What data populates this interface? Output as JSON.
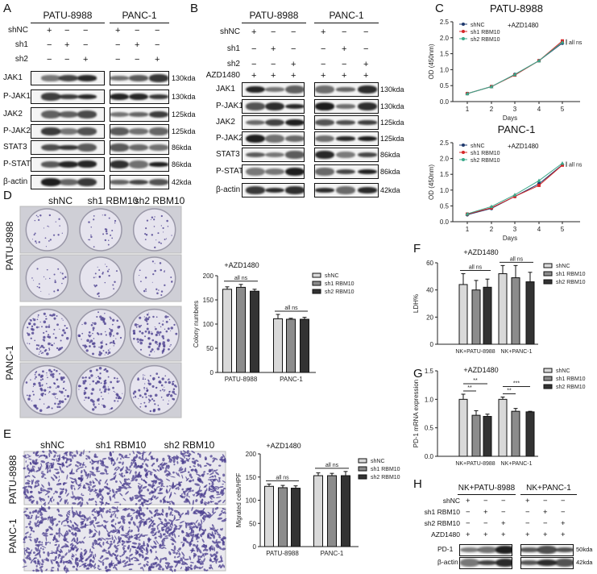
{
  "panel_labels": {
    "A": "A",
    "B": "B",
    "C": "C",
    "D": "D",
    "E": "E",
    "F": "F",
    "G": "G",
    "H": "H"
  },
  "blots": {
    "A": {
      "groups": [
        "PATU-8988",
        "PANC-1"
      ],
      "conditions": [
        {
          "label": "shNC",
          "values": [
            "+",
            "−",
            "−",
            "+",
            "−",
            "−"
          ]
        },
        {
          "label": "sh1",
          "values": [
            "−",
            "+",
            "−",
            "−",
            "+",
            "−"
          ]
        },
        {
          "label": "sh2",
          "values": [
            "−",
            "−",
            "+",
            "−",
            "−",
            "+"
          ]
        }
      ],
      "rows": [
        {
          "label": "JAK1",
          "kda": "130kda"
        },
        {
          "label": "P-JAK1",
          "kda": "130kda"
        },
        {
          "label": "JAK2",
          "kda": "125kda"
        },
        {
          "label": "P-JAK2",
          "kda": "125kda"
        },
        {
          "label": "STAT3",
          "kda": "86kda"
        },
        {
          "label": "P-STAT3",
          "kda": "86kda"
        },
        {
          "label": "β-actin",
          "kda": "42kda"
        }
      ]
    },
    "B": {
      "groups": [
        "PATU-8988",
        "PANC-1"
      ],
      "conditions": [
        {
          "label": "shNC",
          "values": [
            "+",
            "−",
            "−",
            "+",
            "−",
            "−"
          ]
        },
        {
          "label": "sh1",
          "values": [
            "−",
            "+",
            "−",
            "−",
            "+",
            "−"
          ]
        },
        {
          "label": "sh2",
          "values": [
            "−",
            "−",
            "+",
            "−",
            "−",
            "+"
          ]
        },
        {
          "label": "AZD1480",
          "values": [
            "+",
            "+",
            "+",
            "+",
            "+",
            "+"
          ]
        }
      ],
      "rows": [
        {
          "label": "JAK1",
          "kda": "130kda"
        },
        {
          "label": "P-JAK1",
          "kda": "130kda"
        },
        {
          "label": "JAK2",
          "kda": "125kda"
        },
        {
          "label": "P-JAK2",
          "kda": "125kda"
        },
        {
          "label": "STAT3",
          "kda": "86kda"
        },
        {
          "label": "P-STAT3",
          "kda": "86kda"
        },
        {
          "label": "β-actin",
          "kda": "42kda"
        }
      ]
    },
    "H": {
      "groups": [
        "NK+PATU-8988",
        "NK+PANC-1"
      ],
      "conditions": [
        {
          "label": "shNC",
          "values": [
            "+",
            "−",
            "−",
            "+",
            "−",
            "−"
          ]
        },
        {
          "label": "sh1 RBM10",
          "values": [
            "−",
            "+",
            "−",
            "−",
            "+",
            "−"
          ]
        },
        {
          "label": "sh2 RBM10",
          "values": [
            "−",
            "−",
            "+",
            "−",
            "−",
            "+"
          ]
        },
        {
          "label": "AZD1480",
          "values": [
            "+",
            "+",
            "+",
            "+",
            "+",
            "+"
          ]
        }
      ],
      "rows": [
        {
          "label": "PD-1",
          "kda": "50kda"
        },
        {
          "label": "β-actin",
          "kda": "42kda"
        }
      ]
    }
  },
  "photos": {
    "D": {
      "columns": [
        "shNC",
        "sh1 RBM10",
        "sh2 RBM10"
      ],
      "rows": [
        "PATU-8988",
        "PANC-1"
      ],
      "stain_color": "#4b3f8f"
    },
    "E": {
      "columns": [
        "shNC",
        "sh1 RBM10",
        "sh2 RBM10"
      ],
      "rows": [
        "PATU-8988",
        "PANC-1"
      ],
      "stain_color": "#4b3f8f"
    }
  },
  "chart_data": [
    {
      "id": "C1",
      "type": "line",
      "title": "PATU-8988",
      "annotation": "+AZD1480",
      "xlabel": "Days",
      "ylabel": "OD (450nm)",
      "x": [
        1,
        2,
        3,
        4,
        5
      ],
      "ylim": [
        0,
        2.5
      ],
      "yticks": [
        "0.0",
        "0.5",
        "1.0",
        "1.5",
        "2.0",
        "2.5"
      ],
      "xticks": [
        "1",
        "2",
        "3",
        "4",
        "5"
      ],
      "significance": "all ns",
      "series": [
        {
          "name": "shNC",
          "color": "#1f3a6e",
          "marker": "circle",
          "values": [
            0.25,
            0.47,
            0.85,
            1.28,
            1.83
          ]
        },
        {
          "name": "sh1 RBM10",
          "color": "#d62728",
          "marker": "square",
          "values": [
            0.25,
            0.47,
            0.83,
            1.28,
            1.9
          ]
        },
        {
          "name": "sh2 RBM10",
          "color": "#3aa88a",
          "marker": "triangle",
          "values": [
            0.25,
            0.47,
            0.85,
            1.28,
            1.86
          ]
        }
      ]
    },
    {
      "id": "C2",
      "type": "line",
      "title": "PANC-1",
      "annotation": "+AZD1480",
      "xlabel": "Days",
      "ylabel": "OD (450nm)",
      "x": [
        1,
        2,
        3,
        4,
        5
      ],
      "ylim": [
        0,
        2.5
      ],
      "yticks": [
        "0.0",
        "0.5",
        "1.0",
        "1.5",
        "2.0",
        "2.5"
      ],
      "xticks": [
        "1",
        "2",
        "3",
        "4",
        "5"
      ],
      "significance": "all ns",
      "series": [
        {
          "name": "shNC",
          "color": "#1f3a6e",
          "marker": "circle",
          "values": [
            0.22,
            0.42,
            0.8,
            1.2,
            1.8
          ]
        },
        {
          "name": "sh1 RBM10",
          "color": "#d62728",
          "marker": "square",
          "values": [
            0.24,
            0.44,
            0.8,
            1.15,
            1.79
          ]
        },
        {
          "name": "sh2 RBM10",
          "color": "#3aa88a",
          "marker": "triangle",
          "values": [
            0.25,
            0.48,
            0.85,
            1.3,
            1.85
          ]
        }
      ]
    },
    {
      "id": "D",
      "type": "bar",
      "annotation": "+AZD1480",
      "ylabel": "Colony numbers",
      "categories": [
        "PATU-8988",
        "PANC-1"
      ],
      "ylim": [
        0,
        200
      ],
      "yticks": [
        "0",
        "50",
        "100",
        "150",
        "200"
      ],
      "series": [
        {
          "name": "shNC",
          "color": "#d9d9d9",
          "values": [
            172,
            111
          ],
          "errors": [
            5,
            9
          ]
        },
        {
          "name": "sh1 RBM10",
          "color": "#8c8c8c",
          "values": [
            176,
            110
          ],
          "errors": [
            6,
            2
          ]
        },
        {
          "name": "sh2 RBM10",
          "color": "#333333",
          "values": [
            168,
            110
          ],
          "errors": [
            4,
            4
          ]
        }
      ],
      "significance": [
        {
          "group": 0,
          "label": "all ns"
        },
        {
          "group": 1,
          "label": "all ns"
        }
      ]
    },
    {
      "id": "E",
      "type": "bar",
      "annotation": "+AZD1480",
      "ylabel": "Migrated cells/HPF",
      "categories": [
        "PATU-8988",
        "PANC-1"
      ],
      "ylim": [
        0,
        200
      ],
      "yticks": [
        "0",
        "50",
        "100",
        "150",
        "200"
      ],
      "series": [
        {
          "name": "shNC",
          "color": "#d9d9d9",
          "values": [
            130,
            153
          ],
          "errors": [
            5,
            6
          ]
        },
        {
          "name": "sh1 RBM10",
          "color": "#8c8c8c",
          "values": [
            127,
            153
          ],
          "errors": [
            5,
            5
          ]
        },
        {
          "name": "sh2 RBM10",
          "color": "#333333",
          "values": [
            126,
            153
          ],
          "errors": [
            5,
            9
          ]
        }
      ],
      "significance": [
        {
          "group": 0,
          "label": "all ns"
        },
        {
          "group": 1,
          "label": "all ns"
        }
      ]
    },
    {
      "id": "F",
      "type": "bar",
      "annotation": "+AZD1480",
      "ylabel": "LDH%",
      "categories": [
        "NK+PATU-8988",
        "NK+PANC-1"
      ],
      "ylim": [
        0,
        60
      ],
      "yticks": [
        "0",
        "20",
        "40",
        "60"
      ],
      "series": [
        {
          "name": "shNC",
          "color": "#d9d9d9",
          "values": [
            44,
            52
          ],
          "errors": [
            8,
            6
          ]
        },
        {
          "name": "sh1 RBM10",
          "color": "#8c8c8c",
          "values": [
            40,
            49
          ],
          "errors": [
            7,
            9
          ]
        },
        {
          "name": "sh2 RBM10",
          "color": "#333333",
          "values": [
            42,
            46
          ],
          "errors": [
            6,
            7
          ]
        }
      ],
      "significance": [
        {
          "group": 0,
          "label": "all ns"
        },
        {
          "group": 1,
          "label": "all ns"
        }
      ]
    },
    {
      "id": "G",
      "type": "bar",
      "annotation": "+AZD1480",
      "ylabel": "PD-1 mRNA expression",
      "categories": [
        "NK+PATU-8988",
        "NK+PANC-1"
      ],
      "ylim": [
        0,
        1.5
      ],
      "yticks": [
        "0.0",
        "0.5",
        "1.0",
        "1.5"
      ],
      "series": [
        {
          "name": "shNC",
          "color": "#d9d9d9",
          "values": [
            1.0,
            1.0
          ],
          "errors": [
            0.09,
            0.04
          ]
        },
        {
          "name": "sh1 RBM10",
          "color": "#8c8c8c",
          "values": [
            0.72,
            0.79
          ],
          "errors": [
            0.08,
            0.05
          ]
        },
        {
          "name": "sh2 RBM10",
          "color": "#333333",
          "values": [
            0.7,
            0.78
          ],
          "errors": [
            0.04,
            0.01
          ]
        }
      ],
      "significance": [
        {
          "group": 0,
          "from": 0,
          "to": 1,
          "label": "**"
        },
        {
          "group": 0,
          "from": 0,
          "to": 2,
          "label": "**"
        },
        {
          "group": 1,
          "from": 0,
          "to": 1,
          "label": "**"
        },
        {
          "group": 1,
          "from": 0,
          "to": 2,
          "label": "***"
        }
      ]
    }
  ]
}
